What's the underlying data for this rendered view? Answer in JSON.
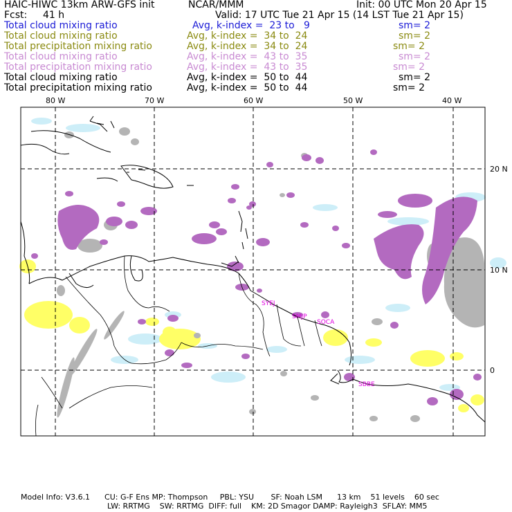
{
  "header": {
    "model_title": "HAIC-HIWC 13km ARW-GFS init",
    "org": "NCAR/MMM",
    "init": "Init: 00 UTC Mon 20 Apr 15",
    "fcst_label": "Fcst:",
    "fcst_value": "41 h",
    "valid": "Valid: 17 UTC Tue 21 Apr 15 (14 LST Tue 21 Apr 15)"
  },
  "legend": [
    {
      "field": "Total cloud mixing ratio",
      "stat": "Avg, k-index =  23 to   9",
      "sm": "sm= 2",
      "color": "#1a1ad6"
    },
    {
      "field": "Total cloud mixing ratio",
      "stat": "Avg, k-index =  34 to  24",
      "sm": "sm= 2",
      "color": "#8a8a10"
    },
    {
      "field": "Total precipitation mixing ratio",
      "stat": "Avg, k-index =  34 to  24",
      "sm": "sm= 2",
      "color": "#8a8a10"
    },
    {
      "field": "Total cloud mixing ratio",
      "stat": "Avg, k-index =  43 to  35",
      "sm": "sm= 2",
      "color": "#c88ad2"
    },
    {
      "field": "Total precipitation mixing ratio",
      "stat": "Avg, k-index =  43 to  35",
      "sm": "sm= 2",
      "color": "#c88ad2"
    },
    {
      "field": "Total cloud mixing ratio",
      "stat": "Avg, k-index =  50 to  44",
      "sm": "sm= 2",
      "color": "#000000"
    },
    {
      "field": "Total precipitation mixing ratio",
      "stat": "Avg, k-index =  50 to  44",
      "sm": "sm= 2",
      "color": "#000000"
    }
  ],
  "map": {
    "lon_labels": [
      "80 W",
      "70 W",
      "60 W",
      "50 W",
      "40 W"
    ],
    "lat_labels": [
      "20 N",
      "10 N",
      "0"
    ],
    "stations": [
      "SYEJ",
      "SMJP",
      "SOCA",
      "SBBE"
    ],
    "colors": {
      "cloud_purple": "#b36ac0",
      "precip_gray": "#b4b4b4",
      "light_blue": "#cdeef8",
      "yellow": "#ffff66",
      "station_label": "#e000e0"
    }
  },
  "footer": {
    "line1": "Model Info: V3.6.1      CU: G-F Ens MP: Thompson     PBL: YSU       SF: Noah LSM      13 km    51 levels    60 sec",
    "line2": "LW: RRTMG    SW: RRTMG  DIFF: full    KM: 2D Smagor DAMP: Rayleigh3  SFLAY: MM5"
  }
}
